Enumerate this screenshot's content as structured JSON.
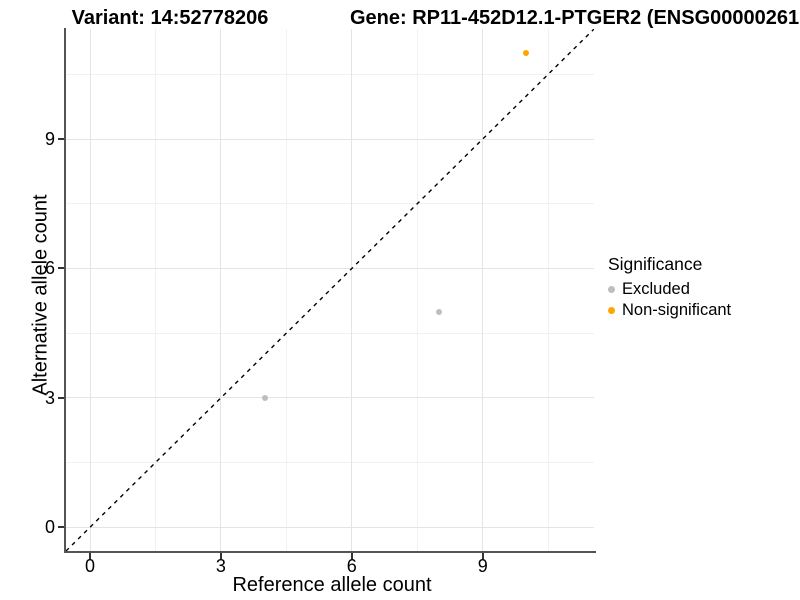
{
  "titles": {
    "variant": "Variant: 14:52778206",
    "gene": "Gene: RP11-452D12.1-PTGER2 (ENSG00000261"
  },
  "legend": {
    "title": "Significance",
    "items": [
      {
        "label": "Excluded",
        "color": "#bebebe"
      },
      {
        "label": "Non-significant",
        "color": "#ffa500"
      }
    ]
  },
  "chart_data": {
    "type": "scatter",
    "xlabel": "Reference allele count",
    "ylabel": "Alternative allele count",
    "xlim": [
      -0.55,
      11.55
    ],
    "ylim": [
      -0.55,
      11.55
    ],
    "x_ticks": [
      0,
      3,
      6,
      9
    ],
    "x_tick_labels": [
      "0",
      "3",
      "6",
      "9"
    ],
    "y_ticks": [
      0,
      3,
      6,
      9
    ],
    "y_tick_labels": [
      "0",
      "3",
      "6",
      "9"
    ],
    "x_minor_gridlines": [
      1.5,
      4.5,
      7.5,
      10.5
    ],
    "y_minor_gridlines": [
      1.5,
      4.5,
      7.5,
      10.5
    ],
    "grid": "on",
    "legend_position": "right",
    "series": [
      {
        "name": "Excluded",
        "color": "#bebebe",
        "points": [
          {
            "x": 4,
            "y": 3
          },
          {
            "x": 8,
            "y": 5
          }
        ]
      },
      {
        "name": "Non-significant",
        "color": "#ffa500",
        "points": [
          {
            "x": 10,
            "y": 11
          }
        ]
      }
    ],
    "identity_line": {
      "type": "dashed",
      "color": "#000000",
      "from": -0.55,
      "to": 11.55
    }
  }
}
